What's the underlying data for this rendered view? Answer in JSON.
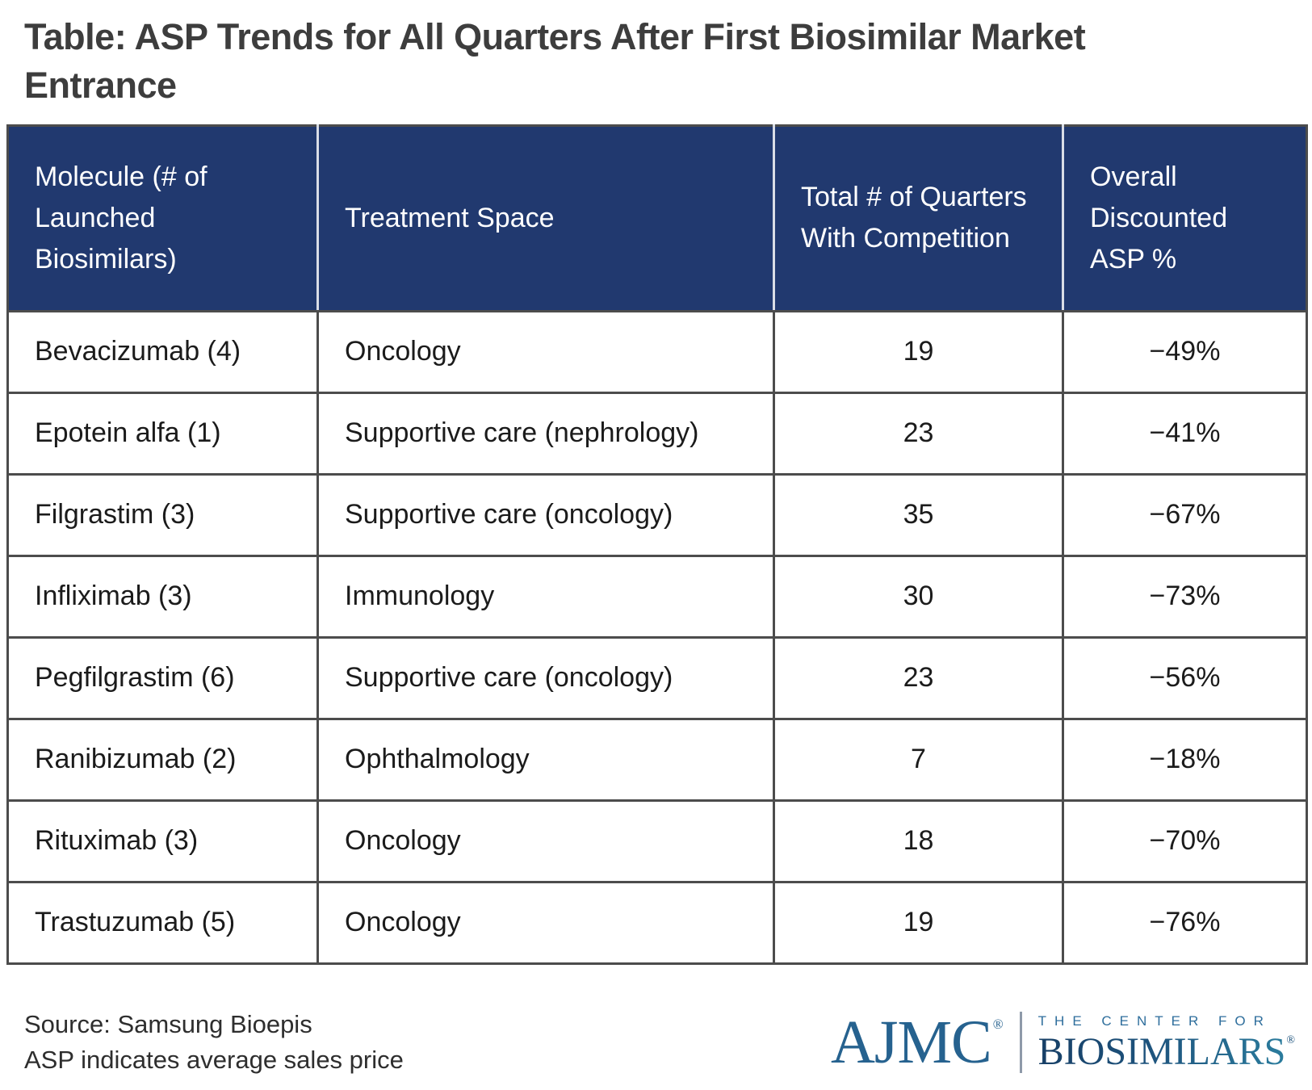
{
  "chart_data": {
    "type": "table",
    "title": "Table: ASP Trends for All Quarters After First Biosimilar Market Entrance",
    "columns": [
      "Molecule (# of Launched Biosimilars)",
      "Treatment Space",
      "Total # of Quarters With Competition",
      "Overall Discounted ASP %"
    ],
    "rows": [
      [
        "Bevacizumab (4)",
        "Oncology",
        "19",
        "−49%"
      ],
      [
        "Epotein alfa (1)",
        "Supportive care (nephrology)",
        "23",
        "−41%"
      ],
      [
        "Filgrastim (3)",
        "Supportive care (oncology)",
        "35",
        "−67%"
      ],
      [
        "Infliximab (3)",
        "Immunology",
        "30",
        "−73%"
      ],
      [
        "Pegfilgrastim (6)",
        "Supportive care (oncology)",
        "23",
        "−56%"
      ],
      [
        "Ranibizumab (2)",
        "Ophthalmology",
        "7",
        "−18%"
      ],
      [
        "Rituximab (3)",
        "Oncology",
        "18",
        "−70%"
      ],
      [
        "Trastuzumab (5)",
        "Oncology",
        "19",
        "−76%"
      ]
    ],
    "source": "Source: Samsung Bioepis",
    "note": "ASP indicates average sales price"
  },
  "logo": {
    "ajmc": "AJMC",
    "ajmc_registered": "®",
    "center_line1": "THE CENTER FOR",
    "center_line2": "BIOSIMILARS",
    "biosimilars_registered": "®"
  },
  "colors": {
    "header_bg": "#21396f",
    "table_border": "#4c4c4c",
    "title_text": "#3d3d3d",
    "logo_blue": "#26628f",
    "biosimilars_blue": "#1d537d"
  }
}
